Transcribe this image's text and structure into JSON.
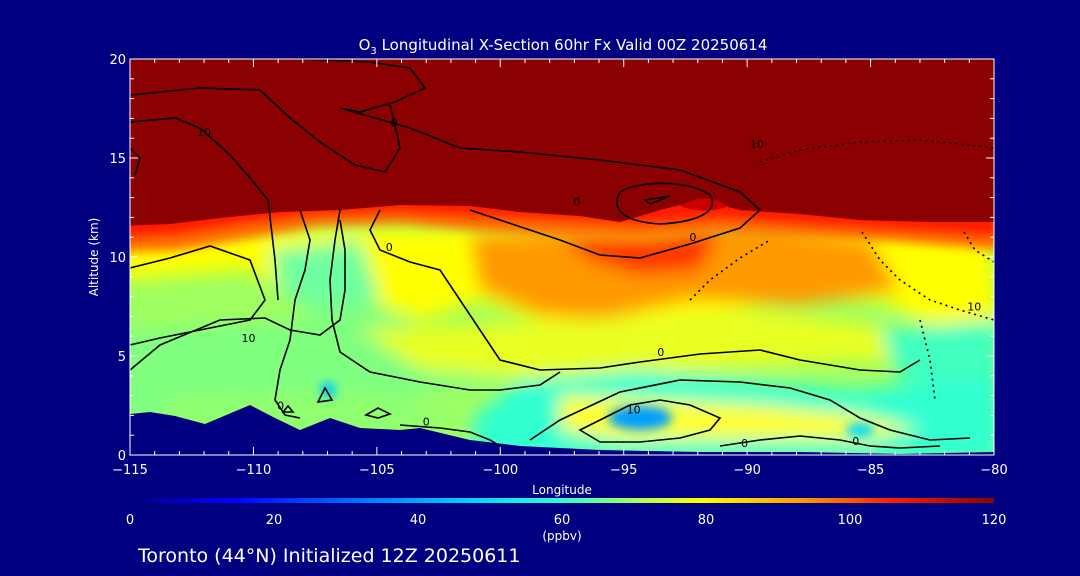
{
  "chart_data": {
    "type": "heatmap",
    "title_main": "O",
    "title_sub": "3",
    "title_rest": " Longitudinal X-Section 60hr  Fx Valid 00Z 20250614",
    "xlabel": "Longitude",
    "ylabel": "Altitude (km)",
    "xlim": [
      -115,
      -80
    ],
    "ylim": [
      0,
      20
    ],
    "x_ticks": [
      {
        "value": -115,
        "label": "−115"
      },
      {
        "value": -110,
        "label": "−110"
      },
      {
        "value": -105,
        "label": "−105"
      },
      {
        "value": -100,
        "label": "−100"
      },
      {
        "value": -95,
        "label": "−95"
      },
      {
        "value": -90,
        "label": "−90"
      },
      {
        "value": -85,
        "label": "−85"
      },
      {
        "value": -80,
        "label": "−80"
      }
    ],
    "y_ticks": [
      {
        "value": 0,
        "label": "0"
      },
      {
        "value": 5,
        "label": "5"
      },
      {
        "value": 10,
        "label": "10"
      },
      {
        "value": 15,
        "label": "15"
      },
      {
        "value": 20,
        "label": "20"
      }
    ],
    "colorbar": {
      "min": 0,
      "max": 120,
      "ticks": [
        {
          "value": 0,
          "label": "0"
        },
        {
          "value": 20,
          "label": "20"
        },
        {
          "value": 40,
          "label": "40"
        },
        {
          "value": 60,
          "label": "60"
        },
        {
          "value": 80,
          "label": "80"
        },
        {
          "value": 100,
          "label": "100"
        },
        {
          "value": 120,
          "label": "120"
        }
      ],
      "units": "(ppbv)"
    },
    "colors": {
      "c0": "#000080",
      "c1": "#0000ff",
      "c2": "#00b4ff",
      "c3": "#30ffd0",
      "c4": "#a0ff60",
      "c5": "#ffff00",
      "c6": "#ff9a00",
      "c7": "#ff1e00",
      "c8": "#8b0000"
    },
    "contour_labels": [
      {
        "x": -112,
        "y": 16.1,
        "label": "10"
      },
      {
        "x": -104.3,
        "y": 16.6,
        "label": "0"
      },
      {
        "x": -110.2,
        "y": 5.7,
        "label": "10"
      },
      {
        "x": -104.5,
        "y": 10.3,
        "label": "0"
      },
      {
        "x": -96.9,
        "y": 12.6,
        "label": "0"
      },
      {
        "x": -92.2,
        "y": 10.8,
        "label": "0"
      },
      {
        "x": -89.6,
        "y": 15.5,
        "label": "10"
      },
      {
        "x": -80.8,
        "y": 7.3,
        "label": "10"
      },
      {
        "x": -93.5,
        "y": 5.0,
        "label": "0"
      },
      {
        "x": -94.6,
        "y": 2.1,
        "label": "10"
      },
      {
        "x": -103,
        "y": 1.5,
        "label": "0"
      },
      {
        "x": -108.9,
        "y": 2.3,
        "label": "0"
      },
      {
        "x": -90.1,
        "y": 0.4,
        "label": "0"
      },
      {
        "x": -85.6,
        "y": 0.5,
        "label": "0"
      }
    ]
  },
  "footer": {
    "text": "Toronto (44°N) Initialized 12Z 20250611"
  }
}
